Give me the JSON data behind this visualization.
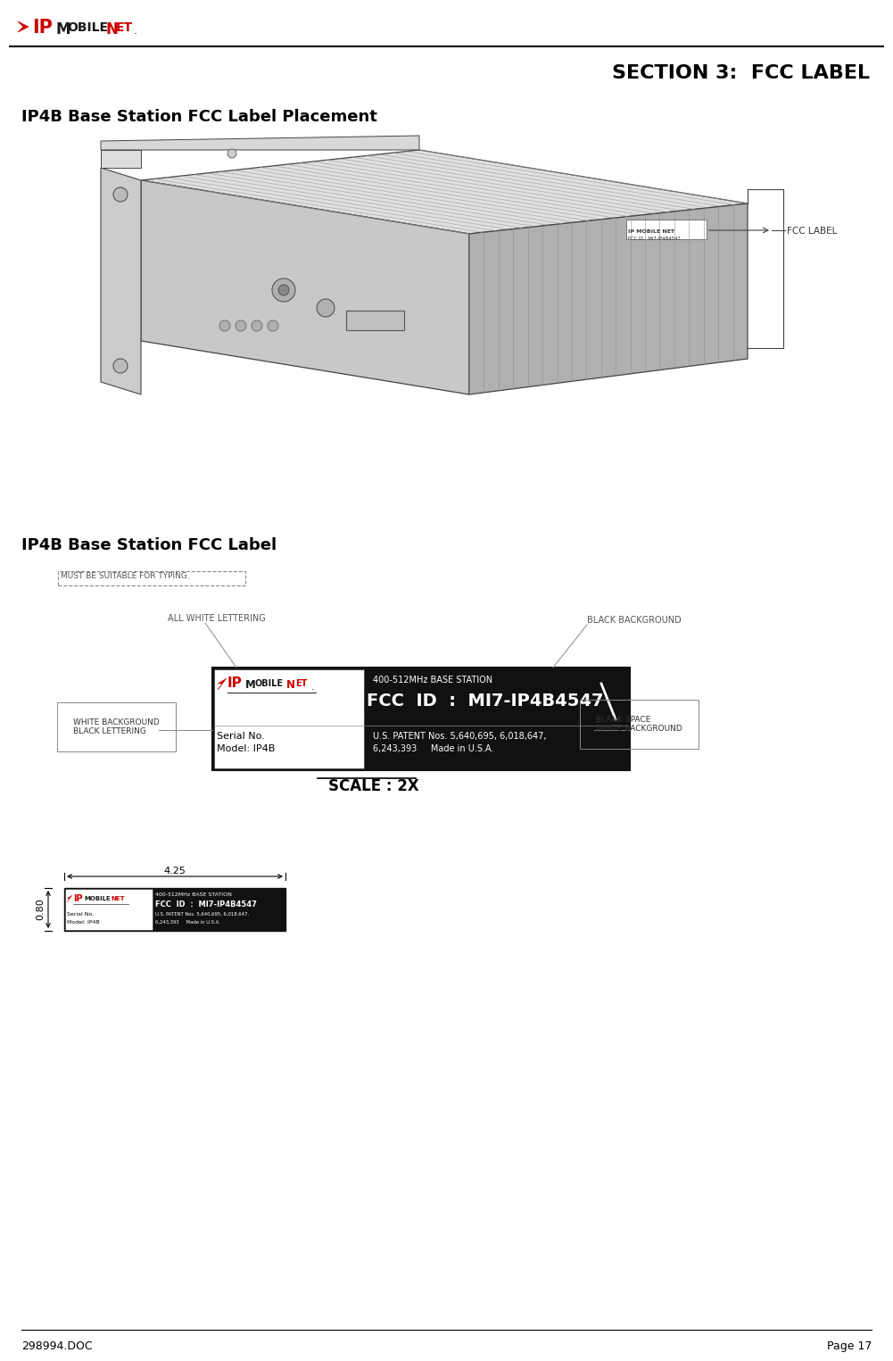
{
  "page_width": 9.81,
  "page_height": 15.01,
  "bg_color": "#ffffff",
  "section_title": "SECTION 3:  FCC LABEL",
  "section1_heading": "IP4B Base Station FCC Label Placement",
  "section2_heading": "IP4B Base Station FCC Label",
  "footer_left": "298994.DOC",
  "footer_right": "Page 17",
  "scale_text": "SCALE : 2X",
  "fcc_label_callout": "FCC LABEL",
  "label_line1_left": "Serial No.",
  "label_line2_left": "Model: IP4B",
  "label_line1_right": "U.S. PATENT Nos. 5,640,695, 6,018,647,",
  "label_line2_right": "6,243,393     Made in U.S.A.",
  "fcc_id_text": "FCC  ID  :  MI7-IP4B4547",
  "freq_text": "400-512MHz BASE STATION",
  "annotation_white_bg": "WHITE BACKGROUND\nBLACK LETTERING",
  "annotation_black_bg": "BLACK BACKGROUND",
  "annotation_all_white": "ALL WHITE LETTERING",
  "annotation_blank": "BLANK SPACE\nWHITE BACKGROUND",
  "annotation_must_type": "MUST BE SUITABLE FOR TYPING.",
  "dim_width": "4.25",
  "dim_height": "0.80",
  "small_label_fcc": "FCC  ID  :  MI7-IP4B4547",
  "small_label_freq": "400-512MHz BASE STATION",
  "small_label_serial": "Serial No.",
  "small_label_model": "Model: IP4B",
  "small_label_patent": "U.S. PATENT Nos. 5,640,695, 6,018,647,",
  "small_label_made": "6,243,393     Made in U.S.A."
}
